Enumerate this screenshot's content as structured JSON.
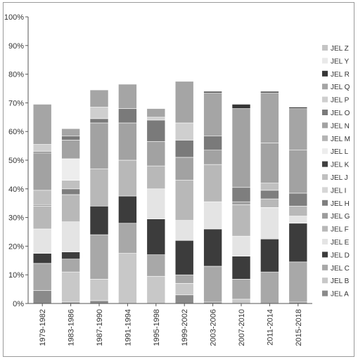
{
  "chart_data": {
    "type": "bar",
    "stacked": true,
    "normalized": true,
    "title": "",
    "xlabel": "",
    "ylabel": "",
    "ylim": [
      0,
      100
    ],
    "yticks": [
      "0%",
      "10%",
      "20%",
      "30%",
      "40%",
      "50%",
      "60%",
      "70%",
      "80%",
      "90%",
      "100%"
    ],
    "legend_position": "right",
    "grid": false,
    "categories": [
      "1979-1982",
      "1983-1986",
      "1987-1990",
      "1991-1994",
      "1995-1998",
      "1999-2002",
      "2003-2006",
      "2007-2010",
      "2011-2014",
      "2015-2018"
    ],
    "series": [
      {
        "name": "JEL A",
        "color": "#8a8a8a",
        "values": [
          4.5,
          0.5,
          1.0,
          0.0,
          0.0,
          3.0,
          0.5,
          0.0,
          0.0,
          0.5
        ]
      },
      {
        "name": "JEL B",
        "color": "#c8c8c8",
        "values": [
          0.0,
          10.5,
          7.5,
          17.5,
          9.5,
          4.0,
          0.0,
          1.5,
          0.0,
          0.0
        ]
      },
      {
        "name": "JEL C",
        "color": "#a8a8a8",
        "values": [
          9.5,
          4.5,
          15.5,
          10.5,
          7.5,
          3.0,
          12.5,
          7.0,
          11.0,
          14.0
        ]
      },
      {
        "name": "JEL D",
        "color": "#3c3c3c",
        "values": [
          3.5,
          2.5,
          10.0,
          9.5,
          12.5,
          12.0,
          13.0,
          8.0,
          11.5,
          13.5
        ]
      },
      {
        "name": "JEL E",
        "color": "#e4e4e4",
        "values": [
          8.5,
          10.5,
          0.0,
          0.0,
          10.5,
          7.0,
          9.5,
          7.0,
          11.0,
          2.5
        ]
      },
      {
        "name": "JEL F",
        "color": "#b8b8b8",
        "values": [
          8.0,
          9.5,
          13.0,
          12.5,
          8.0,
          14.0,
          13.0,
          11.0,
          3.0,
          3.5
        ]
      },
      {
        "name": "JEL G",
        "color": "#9c9c9c",
        "values": [
          0.5,
          0.0,
          0.0,
          0.0,
          0.0,
          0.0,
          0.0,
          1.0,
          0.0,
          0.0
        ]
      },
      {
        "name": "JEL H",
        "color": "#7e7e7e",
        "values": [
          0.0,
          2.0,
          0.0,
          0.0,
          0.0,
          0.0,
          0.0,
          5.0,
          3.0,
          4.5
        ]
      },
      {
        "name": "JEL I",
        "color": "#d6d6d6",
        "values": [
          0.0,
          0.0,
          0.0,
          0.0,
          0.0,
          0.0,
          0.0,
          0.0,
          0.0,
          0.0
        ]
      },
      {
        "name": "JEL J",
        "color": "#c0c0c0",
        "values": [
          5.0,
          3.0,
          0.0,
          0.0,
          0.0,
          0.0,
          0.0,
          0.0,
          2.5,
          0.0
        ]
      },
      {
        "name": "JEL K",
        "color": "#404040",
        "values": [
          0.0,
          0.0,
          0.0,
          0.0,
          0.0,
          0.0,
          0.0,
          0.0,
          0.0,
          0.0
        ]
      },
      {
        "name": "JEL L",
        "color": "#ededed",
        "values": [
          0.0,
          7.5,
          0.0,
          0.0,
          0.0,
          0.0,
          0.0,
          0.0,
          0.0,
          0.0
        ]
      },
      {
        "name": "JEL M",
        "color": "#b4b4b4",
        "values": [
          0.0,
          0.0,
          0.0,
          0.0,
          0.0,
          0.0,
          0.0,
          0.0,
          0.0,
          0.0
        ]
      },
      {
        "name": "JEL N",
        "color": "#a2a2a2",
        "values": [
          13.0,
          6.5,
          16.0,
          13.0,
          8.5,
          8.0,
          5.0,
          27.5,
          14.0,
          15.0
        ]
      },
      {
        "name": "JEL O",
        "color": "#7a7a7a",
        "values": [
          0.5,
          1.5,
          1.5,
          5.0,
          7.5,
          6.0,
          5.0,
          0.0,
          0.0,
          0.0
        ]
      },
      {
        "name": "JEL P",
        "color": "#cfcfcf",
        "values": [
          2.5,
          0.0,
          4.0,
          0.0,
          1.0,
          6.0,
          0.0,
          0.0,
          0.0,
          0.0
        ]
      },
      {
        "name": "JEL Q",
        "color": "#a5a5a5",
        "values": [
          14.0,
          2.5,
          6.0,
          8.5,
          3.0,
          14.5,
          15.0,
          0.0,
          17.5,
          14.5
        ]
      },
      {
        "name": "JEL R",
        "color": "#363636",
        "values": [
          0.0,
          0.0,
          0.0,
          0.0,
          0.0,
          0.0,
          0.5,
          1.5,
          0.5,
          0.5
        ]
      },
      {
        "name": "JEL Y",
        "color": "#e9e9e9",
        "values": [
          0.0,
          0.0,
          0.0,
          0.0,
          0.0,
          0.0,
          0.0,
          0.0,
          0.0,
          0.0
        ]
      },
      {
        "name": "JEL Z",
        "color": "#c4c4c4",
        "values": [
          0.0,
          0.0,
          0.0,
          0.0,
          0.0,
          0.0,
          0.0,
          0.0,
          0.0,
          0.0
        ]
      }
    ]
  }
}
